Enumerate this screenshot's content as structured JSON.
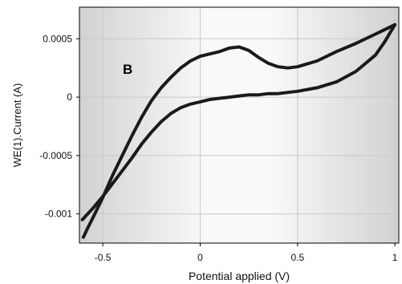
{
  "chart_data": {
    "type": "line",
    "annotation": "B",
    "xlabel": "Potential applied (V)",
    "ylabel": "WE(1).Current (A)",
    "xlim": [
      -0.62,
      1.02
    ],
    "ylim": [
      -0.00125,
      0.00077
    ],
    "grid": true,
    "x_ticks": [
      {
        "value": -0.5,
        "label": "-0.5"
      },
      {
        "value": 0,
        "label": "0"
      },
      {
        "value": 0.5,
        "label": "0.5"
      },
      {
        "value": 1,
        "label": "1"
      }
    ],
    "y_ticks": [
      {
        "value": 0.0005,
        "label": "0.0005"
      },
      {
        "value": 0,
        "label": "0"
      },
      {
        "value": -0.0005,
        "label": "-0.0005"
      },
      {
        "value": -0.001,
        "label": "-0.001"
      }
    ],
    "series": [
      {
        "x": [
          -0.605,
          -0.55,
          -0.5,
          -0.45,
          -0.4,
          -0.35,
          -0.3,
          -0.25,
          -0.2,
          -0.15,
          -0.1,
          -0.05,
          0.0,
          0.05,
          0.1,
          0.15,
          0.2,
          0.25,
          0.3,
          0.35,
          0.4,
          0.45,
          0.5,
          0.6,
          0.7,
          0.8,
          0.9,
          0.95,
          1.0
        ],
        "y": [
          -0.00105,
          -0.00095,
          -0.00085,
          -0.00074,
          -0.00063,
          -0.00052,
          -0.0004,
          -0.0003,
          -0.00021,
          -0.00014,
          -9e-05,
          -6e-05,
          -4e-05,
          -2e-05,
          -1e-05,
          0.0,
          1e-05,
          2e-05,
          2e-05,
          3e-05,
          3e-05,
          4e-05,
          5e-05,
          8e-05,
          0.00013,
          0.00022,
          0.00036,
          0.00048,
          0.00062
        ]
      },
      {
        "x": [
          1.0,
          0.95,
          0.9,
          0.8,
          0.7,
          0.6,
          0.5,
          0.45,
          0.4,
          0.35,
          0.3,
          0.25,
          0.2,
          0.15,
          0.1,
          0.05,
          0.0,
          -0.05,
          -0.1,
          -0.15,
          -0.2,
          -0.25,
          -0.3,
          -0.35,
          -0.4,
          -0.45,
          -0.5,
          -0.55,
          -0.58,
          -0.6
        ],
        "y": [
          0.00062,
          0.00058,
          0.00054,
          0.00046,
          0.00039,
          0.00031,
          0.00026,
          0.00025,
          0.00026,
          0.00029,
          0.00034,
          0.0004,
          0.00043,
          0.00042,
          0.00039,
          0.00037,
          0.00035,
          0.00031,
          0.00025,
          0.00017,
          8e-05,
          -3e-05,
          -0.00017,
          -0.00033,
          -0.0005,
          -0.00067,
          -0.00086,
          -0.00103,
          -0.00113,
          -0.0012
        ]
      }
    ]
  }
}
